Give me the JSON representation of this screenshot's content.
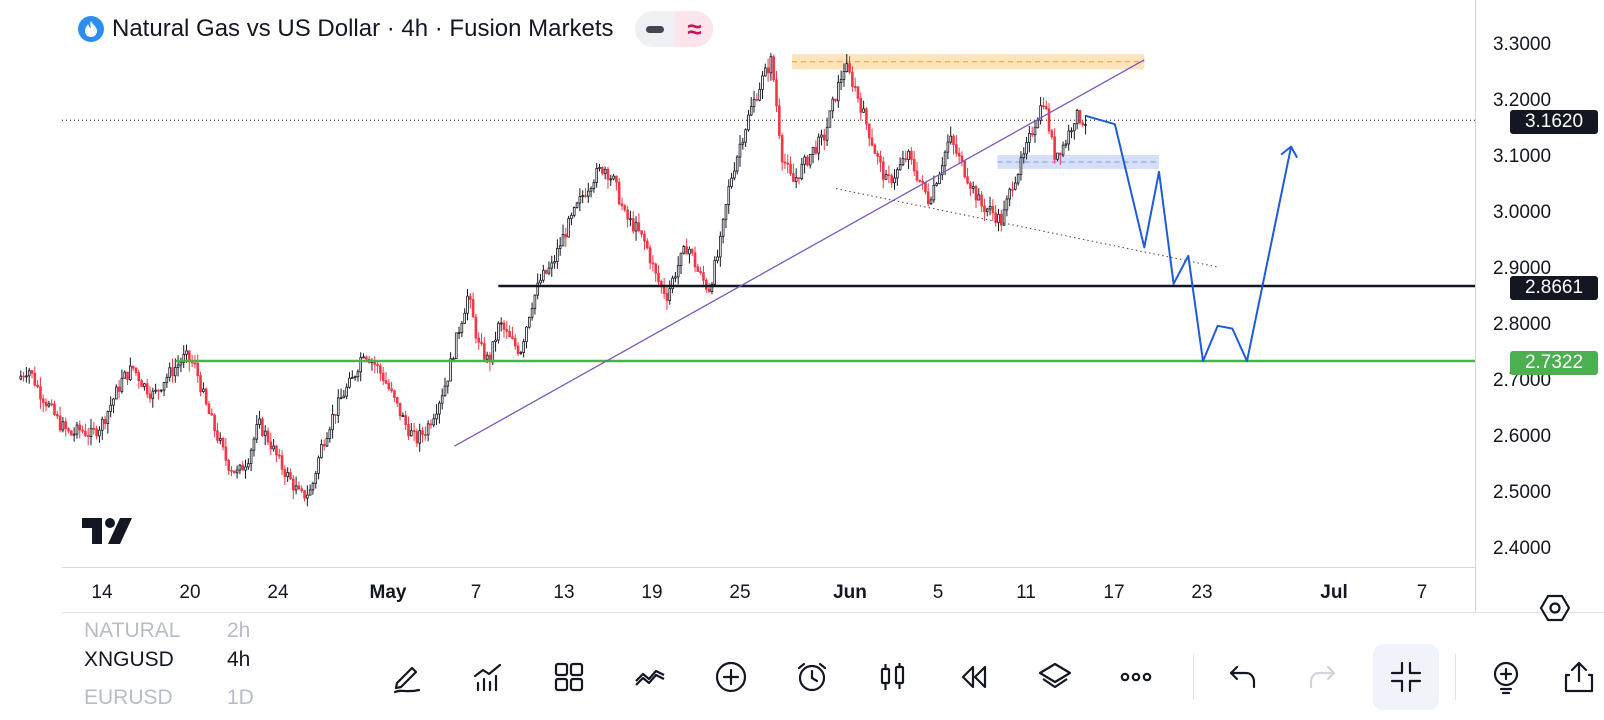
{
  "header": {
    "title": "Natural Gas vs US Dollar · 4h · Fusion Markets",
    "logo_icon": "flame-icon",
    "toggle_icons": [
      "minus-icon",
      "wave-icon"
    ]
  },
  "price_tags": {
    "last": {
      "label": "3.1620",
      "value": 3.162,
      "color": "#131722"
    },
    "black_line": {
      "label": "2.8661",
      "value": 2.8661,
      "color": "#131722"
    },
    "green_line": {
      "label": "2.7322",
      "value": 2.7322,
      "color": "#4caf50"
    }
  },
  "watchlist": [
    {
      "symbol": "NATURAL",
      "timeframe": "2h",
      "faded": true
    },
    {
      "symbol": "XNGUSD",
      "timeframe": "4h",
      "faded": false
    },
    {
      "symbol": "EURUSD",
      "timeframe": "1D",
      "faded": true
    }
  ],
  "toolbar": [
    "pencil-icon",
    "indicators-icon",
    "grid-icon",
    "patterns-icon",
    "add-icon",
    "alarm-icon",
    "candles-icon",
    "replay-icon",
    "layers-icon",
    "more-icon",
    "undo-icon",
    "redo-icon",
    "collapse-icon",
    "idea-icon",
    "share-icon"
  ],
  "settings_icon": "settings-hexagon-icon",
  "brand_icon": "tradingview-logo",
  "chart_data": {
    "type": "candlestick",
    "symbol": "XNGUSD",
    "interval": "4h",
    "y_range": [
      2.35,
      3.35
    ],
    "y_ticks": [
      {
        "label": "3.3000",
        "value": 3.3
      },
      {
        "label": "3.2000",
        "value": 3.2
      },
      {
        "label": "3.1000",
        "value": 3.1
      },
      {
        "label": "3.0000",
        "value": 3.0
      },
      {
        "label": "2.9000",
        "value": 2.9
      },
      {
        "label": "2.8000",
        "value": 2.8
      },
      {
        "label": "2.7000",
        "value": 2.7
      },
      {
        "label": "2.6000",
        "value": 2.6
      },
      {
        "label": "2.5000",
        "value": 2.5
      },
      {
        "label": "2.4000",
        "value": 2.4
      }
    ],
    "x_ticks": [
      {
        "label": "14",
        "bold": false
      },
      {
        "label": "20",
        "bold": false
      },
      {
        "label": "24",
        "bold": false
      },
      {
        "label": "May",
        "bold": true
      },
      {
        "label": "7",
        "bold": false
      },
      {
        "label": "13",
        "bold": false
      },
      {
        "label": "19",
        "bold": false
      },
      {
        "label": "25",
        "bold": false
      },
      {
        "label": "Jun",
        "bold": true
      },
      {
        "label": "5",
        "bold": false
      },
      {
        "label": "11",
        "bold": false
      },
      {
        "label": "17",
        "bold": false
      },
      {
        "label": "23",
        "bold": false
      },
      {
        "label": "Jul",
        "bold": true
      },
      {
        "label": "7",
        "bold": false
      }
    ],
    "price_path": [
      2.7,
      2.72,
      2.68,
      2.65,
      2.62,
      2.6,
      2.61,
      2.6,
      2.62,
      2.66,
      2.7,
      2.72,
      2.69,
      2.67,
      2.7,
      2.72,
      2.74,
      2.72,
      2.65,
      2.6,
      2.55,
      2.53,
      2.56,
      2.62,
      2.59,
      2.55,
      2.52,
      2.49,
      2.5,
      2.58,
      2.63,
      2.67,
      2.7,
      2.75,
      2.73,
      2.7,
      2.66,
      2.62,
      2.59,
      2.61,
      2.65,
      2.7,
      2.78,
      2.85,
      2.76,
      2.73,
      2.8,
      2.77,
      2.75,
      2.83,
      2.88,
      2.9,
      2.95,
      2.99,
      3.03,
      3.06,
      3.08,
      3.05,
      2.99,
      2.97,
      2.94,
      2.88,
      2.85,
      2.9,
      2.94,
      2.89,
      2.86,
      2.93,
      3.05,
      3.12,
      3.18,
      3.23,
      3.27,
      3.1,
      3.05,
      3.08,
      3.11,
      3.13,
      3.2,
      3.26,
      3.22,
      3.16,
      3.1,
      3.05,
      3.07,
      3.1,
      3.06,
      3.02,
      3.07,
      3.13,
      3.09,
      3.05,
      3.01,
      3.0,
      2.98,
      3.05,
      3.09,
      3.15,
      3.2,
      3.1,
      3.12,
      3.17,
      3.16
    ],
    "price_path_start_date": "2024-04-11",
    "price_path_end_date": "2024-06-20",
    "last_price": 3.162,
    "horizontal_levels": [
      {
        "price": 2.8661,
        "color": "#131722"
      },
      {
        "price": 2.7322,
        "color": "#4caf50"
      }
    ],
    "zones": [
      {
        "from": "2024-05-31",
        "to": "2024-06-24",
        "price_low": 3.253,
        "price_high": 3.28,
        "color": "#ffe0b2"
      },
      {
        "from": "2024-06-14",
        "to": "2024-06-25",
        "price_low": 3.075,
        "price_high": 3.1,
        "color": "#d1dcf7"
      }
    ],
    "trendlines": [
      {
        "from_date": "2024-05-08",
        "from_price": 2.58,
        "to_date": "2024-06-24",
        "to_price": 3.27,
        "color": "#7e57c2",
        "style": "solid"
      },
      {
        "from_date": "2024-06-03",
        "from_price": 3.04,
        "to_date": "2024-06-29",
        "to_price": 2.9,
        "color": "#434651",
        "style": "dotted"
      }
    ],
    "projection": [
      {
        "date": "2024-06-20",
        "price": 3.17
      },
      {
        "date": "2024-06-22",
        "price": 3.155
      },
      {
        "date": "2024-06-24",
        "price": 2.935
      },
      {
        "date": "2024-06-25",
        "price": 3.07
      },
      {
        "date": "2024-06-26",
        "price": 2.87
      },
      {
        "date": "2024-06-27",
        "price": 2.92
      },
      {
        "date": "2024-06-28",
        "price": 2.732
      },
      {
        "date": "2024-06-29",
        "price": 2.795
      },
      {
        "date": "2024-06-30",
        "price": 2.79
      },
      {
        "date": "2024-07-01",
        "price": 2.732
      },
      {
        "date": "2024-07-04",
        "price": 3.115
      }
    ]
  }
}
